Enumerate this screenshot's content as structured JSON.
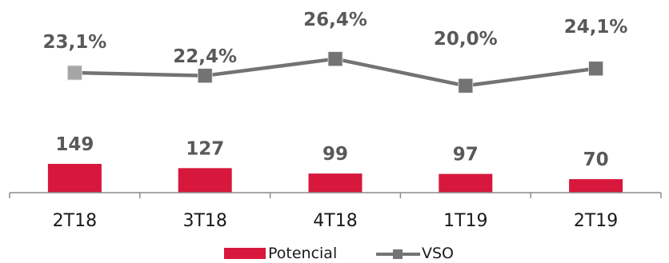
{
  "chart_data": {
    "type": "bar+line",
    "categories": [
      "2T18",
      "3T18",
      "4T18",
      "1T19",
      "2T19"
    ],
    "series": [
      {
        "name": "Potencial",
        "type": "bar",
        "values": [
          149,
          127,
          99,
          97,
          70
        ],
        "labels": [
          "149",
          "127",
          "99",
          "97",
          "70"
        ],
        "color": "#d7183c"
      },
      {
        "name": "VSO",
        "type": "line",
        "values": [
          23.1,
          22.4,
          26.4,
          20.0,
          24.1
        ],
        "labels": [
          "23,1%",
          "22,4%",
          "26,4%",
          "20,0%",
          "24,1%"
        ],
        "color": "#737373",
        "marker_colors": [
          "#a6a6a6",
          "#737373",
          "#737373",
          "#737373",
          "#737373"
        ]
      }
    ],
    "legend_position": "bottom",
    "grid": false
  }
}
